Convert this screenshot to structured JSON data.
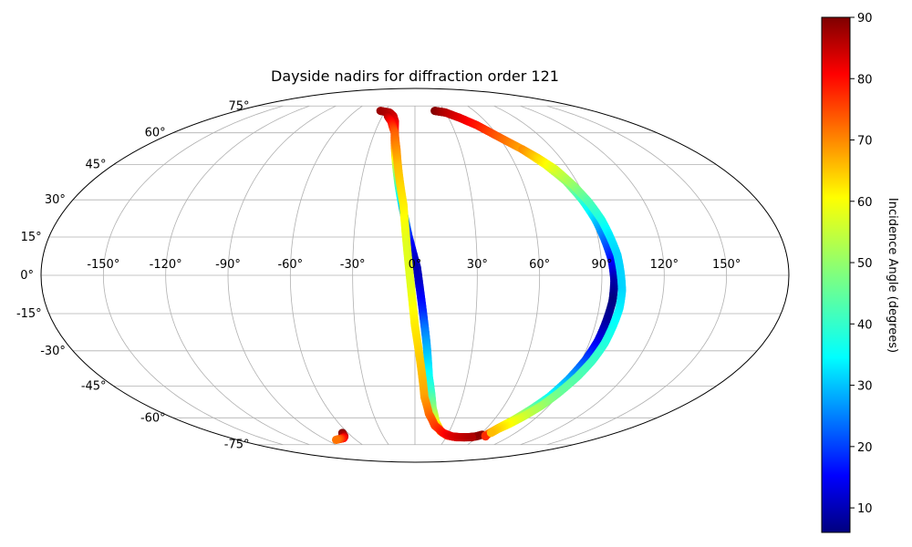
{
  "chart_data": {
    "type": "scatter",
    "projection": "mollweide",
    "title": "Dayside nadirs for diffraction order 121",
    "xlabel": "",
    "ylabel": "",
    "grid": true,
    "lon_ticks": [
      "-150°",
      "-120°",
      "-90°",
      "-60°",
      "-30°",
      "0°",
      "30°",
      "60°",
      "90°",
      "120°",
      "150°"
    ],
    "lon_tick_values": [
      -150,
      -120,
      -90,
      -60,
      -30,
      0,
      30,
      60,
      90,
      120,
      150
    ],
    "lat_ticks": [
      "75°",
      "60°",
      "45°",
      "30°",
      "15°",
      "0°",
      "-15°",
      "-30°",
      "-45°",
      "-60°",
      "-75°"
    ],
    "lat_tick_values": [
      75,
      60,
      45,
      30,
      15,
      0,
      -15,
      -30,
      -45,
      -60,
      -75
    ],
    "colorbar": {
      "label": "Incidence Angle (degrees)",
      "colormap": "jet",
      "range": [
        6,
        90
      ],
      "ticks": [
        "10",
        "20",
        "30",
        "40",
        "50",
        "60",
        "70",
        "80",
        "90"
      ],
      "tick_values": [
        10,
        20,
        30,
        40,
        50,
        60,
        70,
        80,
        90
      ],
      "placement": "right"
    },
    "series": [
      {
        "lon": [
          -35,
          -25,
          -20,
          -17,
          -15,
          -13,
          -11,
          -9,
          -7,
          -5,
          -3,
          -1,
          1,
          2,
          3,
          4,
          5,
          6,
          7,
          8,
          10,
          12,
          16,
          22,
          30,
          40,
          50,
          58,
          62
        ],
        "lat": [
          72,
          71,
          69,
          66,
          60,
          52,
          44,
          36,
          29,
          22,
          15,
          9,
          3,
          -3,
          -9,
          -15,
          -21,
          -27,
          -34,
          -41,
          -48,
          -55,
          -62,
          -67,
          -69.5,
          -70.5,
          -70.5,
          -70,
          -69
        ],
        "incidence": [
          88,
          86,
          84,
          82,
          76,
          66,
          54,
          44,
          36,
          28,
          20,
          14,
          10,
          12,
          16,
          20,
          26,
          30,
          34,
          38,
          42,
          48,
          56,
          66,
          76,
          82,
          86,
          88,
          89
        ]
      },
      {
        "lon": [
          -25,
          -20,
          -15,
          -12,
          -10,
          -8,
          -6,
          -5,
          -4,
          -3,
          -2,
          -1,
          0,
          2,
          4,
          6,
          10,
          16,
          25,
          35,
          45,
          55
        ],
        "lat": [
          69,
          66,
          60,
          52,
          44,
          36,
          28,
          20,
          12,
          4,
          -4,
          -12,
          -20,
          -30,
          -40,
          -50,
          -58,
          -64,
          -68,
          -70,
          -70.5,
          -70.5
        ],
        "incidence": [
          86,
          80,
          72,
          68,
          64,
          62,
          60,
          58,
          56,
          56,
          56,
          58,
          60,
          62,
          64,
          66,
          70,
          74,
          78,
          82,
          84,
          86
        ]
      },
      {
        "lon": [
          20,
          25,
          30,
          40,
          50,
          60,
          70,
          78,
          84,
          88,
          91,
          93,
          95,
          96,
          96,
          95,
          94,
          92,
          89,
          85,
          80,
          75,
          70,
          67,
          66,
          67
        ],
        "lat": [
          72,
          71.5,
          71,
          68,
          64,
          58,
          52,
          45,
          38,
          30,
          22,
          14,
          6,
          -2,
          -10,
          -18,
          -26,
          -34,
          -42,
          -50,
          -56,
          -61,
          -65,
          -68,
          -69.5,
          -70
        ],
        "incidence": [
          90,
          88,
          86,
          82,
          78,
          72,
          66,
          58,
          50,
          42,
          34,
          26,
          18,
          10,
          6,
          8,
          14,
          22,
          30,
          38,
          46,
          54,
          62,
          68,
          72,
          76
        ]
      },
      {
        "lon": [
          70,
          76,
          82,
          87,
          91,
          94,
          96,
          98,
          99,
          100,
          100,
          99,
          98,
          96,
          93,
          89,
          85,
          80,
          75,
          70,
          68
        ],
        "lat": [
          52,
          48,
          43,
          36,
          29,
          22,
          15,
          8,
          1,
          -6,
          -13,
          -20,
          -27,
          -34,
          -41,
          -48,
          -54,
          -59,
          -63,
          -66,
          -68
        ],
        "incidence": [
          68,
          62,
          56,
          50,
          44,
          40,
          36,
          34,
          34,
          34,
          36,
          38,
          40,
          42,
          44,
          46,
          50,
          54,
          58,
          62,
          64
        ]
      },
      {
        "lon": [
          -65,
          -66,
          -67,
          -70,
          -75,
          -80
        ],
        "lat": [
          -68,
          -69,
          -70,
          -71,
          -71.5,
          -72
        ],
        "incidence": [
          90,
          88,
          86,
          80,
          74,
          70
        ]
      }
    ]
  }
}
